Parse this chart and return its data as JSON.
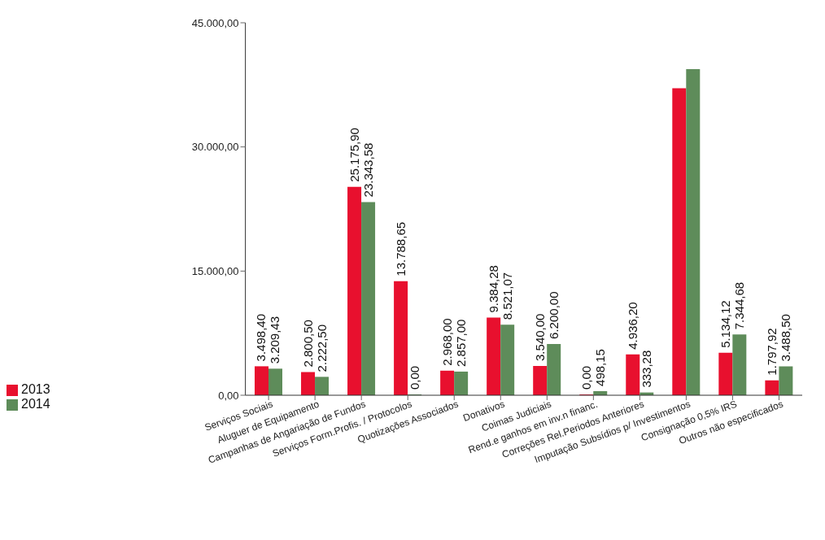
{
  "chart_data": {
    "type": "bar",
    "categories": [
      "Serviços Sociais",
      "Aluguer de Equipamento",
      "Campanhas de Angariação de Fundos",
      "Serviços Form.Profis. / Protocolos",
      "Quotizações Associados",
      "Donativos",
      "Coimas Judiciais",
      "Rend.e ganhos em inv.n financ.",
      "Correções Rel.Periodos Anteriores",
      "Imputação Subsídios p/ Investimentos",
      "Consignação 0,5% IRS",
      "Outros não especificados"
    ],
    "series": [
      {
        "name": "2013",
        "color": "#e8102e",
        "values": [
          3498.4,
          2800.5,
          25175.9,
          13788.65,
          2968.0,
          9384.28,
          3540.0,
          0,
          4936.2,
          37100,
          5134.12,
          1797.92
        ],
        "value_labels": [
          "3.498,40",
          "2.800,50",
          "25.175,90",
          "13.788,65",
          "2.968,00",
          "9.384,28",
          "3.540,00",
          "0,00",
          "4.936,20",
          null,
          "5.134,12",
          "1.797,92"
        ]
      },
      {
        "name": "2014",
        "color": "#5e8c5a",
        "values": [
          3209.43,
          2222.5,
          23343.58,
          0,
          2857.0,
          8521.07,
          6200.0,
          498.15,
          333.28,
          39411,
          7344.68,
          3488.5
        ],
        "value_labels": [
          "3.209,43",
          "2.222,50",
          "23.343,58",
          "0,00",
          "2.857,00",
          "8.521,07",
          "6.200,00",
          "498,15",
          "333,28",
          null,
          "7.344,68",
          "3.488,50"
        ]
      }
    ],
    "ylim": [
      0,
      45000
    ],
    "yticks": [
      {
        "value": 0,
        "label": "0,00"
      },
      {
        "value": 15000,
        "label": "15.000,00"
      },
      {
        "value": 30000,
        "label": "30.000,00"
      },
      {
        "value": 45000,
        "label": "45.000,00"
      }
    ],
    "grid": false,
    "legend": "left"
  }
}
